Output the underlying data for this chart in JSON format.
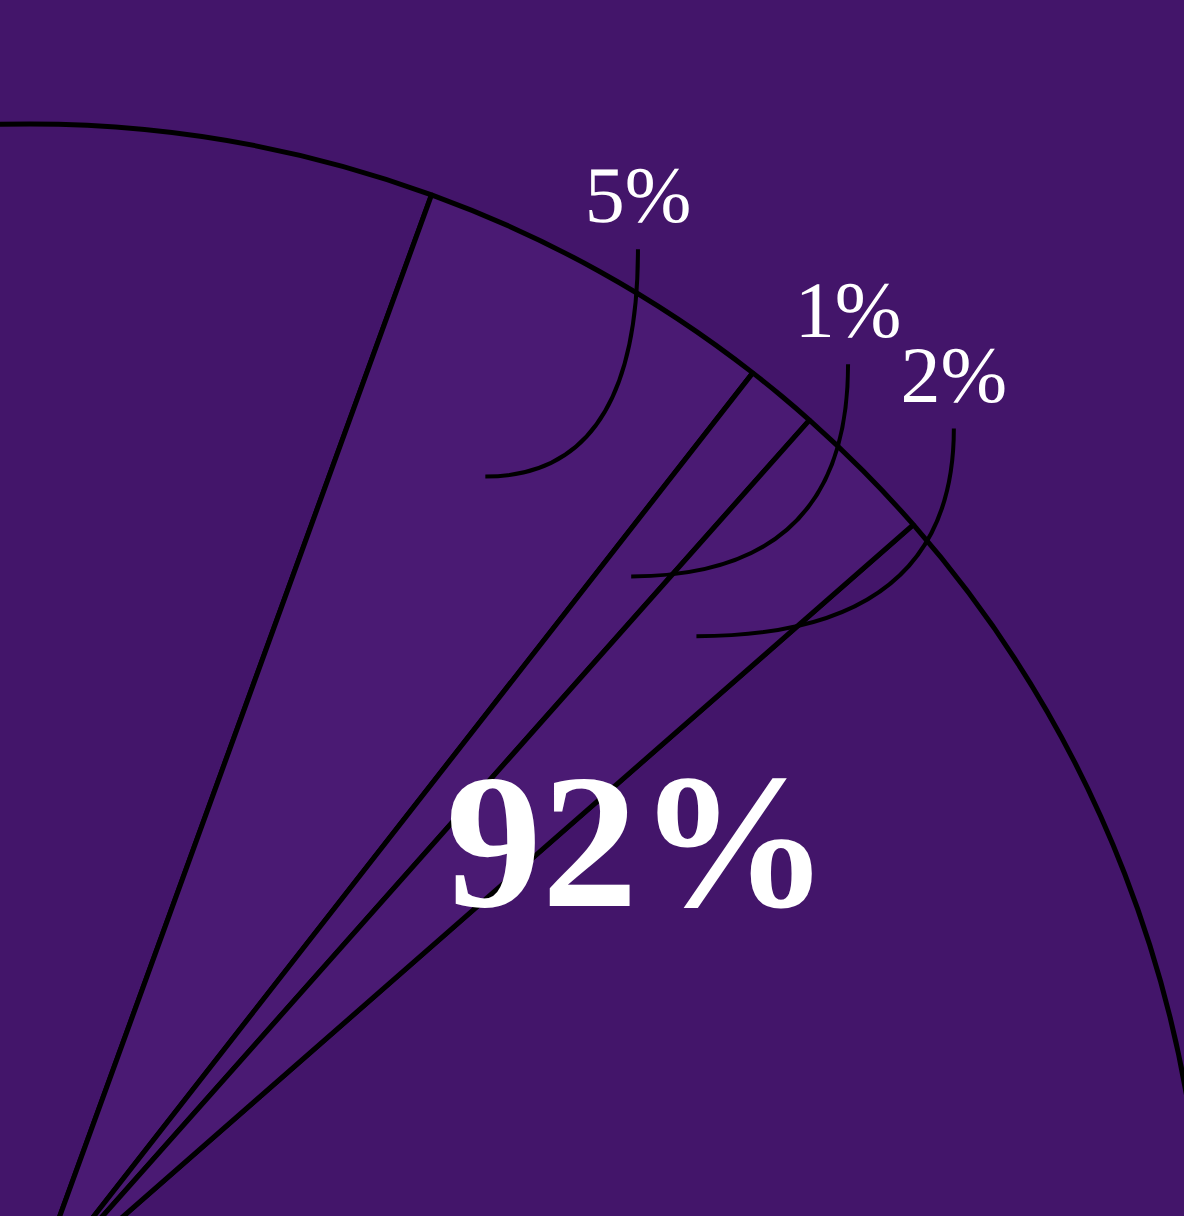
{
  "chart_data": {
    "type": "pie",
    "categories": [
      null,
      null,
      null,
      null
    ],
    "values": [
      92,
      5,
      1,
      2
    ],
    "value_labels": [
      "92%",
      "5%",
      "1%",
      "2%"
    ],
    "colors": [
      "#43156a",
      "#4a1a73",
      "#4a1a73",
      "#4a1a73"
    ],
    "legend": false
  }
}
